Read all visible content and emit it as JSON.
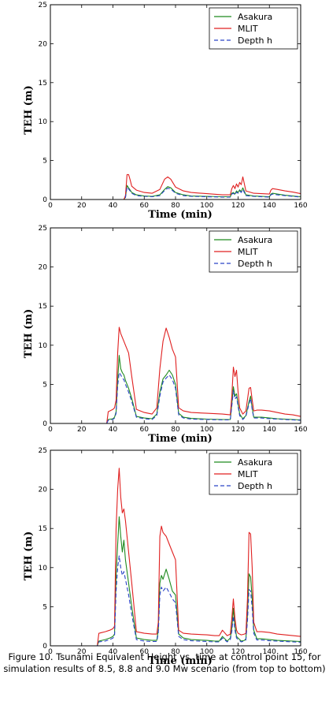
{
  "caption": "Figure 10. Tsunami Equivalent Height vs. time at control point 15, for simulation results of 8.5, 8.8 and 9.0 Mw scenario (from top to bottom)",
  "colors": {
    "Asakura": "#1f8a1f",
    "MLIT": "#e02020",
    "Depth h": "#2a44c8"
  },
  "chart_data": [
    {
      "type": "line",
      "xlabel": "Time (min)",
      "ylabel": "TEH (m)",
      "xlim": [
        0,
        160
      ],
      "ylim": [
        0,
        25
      ],
      "xticks": [
        0,
        20,
        40,
        60,
        80,
        100,
        120,
        140,
        160
      ],
      "yticks": [
        0,
        5,
        10,
        15,
        20,
        25
      ],
      "legend": "top-right",
      "series": [
        {
          "name": "Asakura",
          "style": "solid",
          "color": "#1f8a1f",
          "x": [
            0,
            47,
            48,
            49,
            50,
            52,
            55,
            60,
            65,
            70,
            73,
            75,
            77,
            80,
            85,
            90,
            100,
            110,
            115,
            116,
            117,
            118,
            119,
            120,
            121,
            122,
            123,
            125,
            130,
            140,
            141,
            142,
            145,
            150,
            155,
            160
          ],
          "y": [
            0,
            0,
            0.3,
            1.8,
            1.5,
            0.9,
            0.6,
            0.45,
            0.4,
            0.6,
            1.3,
            1.65,
            1.5,
            0.9,
            0.6,
            0.45,
            0.4,
            0.35,
            0.35,
            0.8,
            0.9,
            0.7,
            1.1,
            0.9,
            1.25,
            1.0,
            1.5,
            0.6,
            0.45,
            0.35,
            0.7,
            0.8,
            0.7,
            0.55,
            0.45,
            0.35
          ]
        },
        {
          "name": "MLIT",
          "style": "solid",
          "color": "#e02020",
          "x": [
            0,
            47,
            48,
            49,
            50,
            51,
            52,
            55,
            60,
            65,
            70,
            73,
            75,
            77,
            80,
            85,
            90,
            100,
            110,
            115,
            116,
            117,
            118,
            119,
            120,
            121,
            122,
            123,
            125,
            130,
            140,
            141,
            142,
            145,
            150,
            155,
            160
          ],
          "y": [
            0,
            0,
            0.5,
            3.2,
            3.2,
            2.5,
            1.7,
            1.2,
            0.9,
            0.8,
            1.3,
            2.6,
            2.9,
            2.6,
            1.6,
            1.1,
            0.9,
            0.75,
            0.6,
            0.6,
            1.4,
            1.8,
            1.4,
            2.0,
            1.6,
            2.2,
            1.9,
            2.9,
            1.1,
            0.8,
            0.7,
            1.2,
            1.4,
            1.3,
            1.1,
            0.95,
            0.75
          ]
        },
        {
          "name": "Depth h",
          "style": "dashed",
          "color": "#2a44c8",
          "x": [
            0,
            47,
            48,
            49,
            50,
            52,
            55,
            60,
            65,
            70,
            73,
            75,
            77,
            80,
            85,
            90,
            100,
            110,
            115,
            116,
            117,
            118,
            119,
            120,
            121,
            122,
            123,
            125,
            130,
            140,
            141,
            142,
            145,
            150,
            155,
            160
          ],
          "y": [
            0,
            0,
            0.25,
            1.6,
            1.35,
            0.8,
            0.5,
            0.4,
            0.35,
            0.5,
            1.15,
            1.45,
            1.35,
            0.8,
            0.5,
            0.4,
            0.35,
            0.3,
            0.3,
            0.7,
            0.8,
            0.6,
            0.95,
            0.8,
            1.1,
            0.9,
            1.3,
            0.5,
            0.4,
            0.3,
            0.6,
            0.7,
            0.6,
            0.5,
            0.4,
            0.3
          ]
        }
      ]
    },
    {
      "type": "line",
      "xlabel": "Time (min)",
      "ylabel": "TEH (m)",
      "xlim": [
        0,
        160
      ],
      "ylim": [
        0,
        25
      ],
      "xticks": [
        0,
        20,
        40,
        60,
        80,
        100,
        120,
        140,
        160
      ],
      "yticks": [
        0,
        5,
        10,
        15,
        20,
        25
      ],
      "legend": "top-right",
      "series": [
        {
          "name": "Asakura",
          "style": "solid",
          "color": "#1f8a1f",
          "x": [
            0,
            36,
            37,
            40,
            41,
            42,
            43,
            44,
            45,
            46,
            47,
            48,
            50,
            52,
            55,
            60,
            65,
            68,
            70,
            72,
            74,
            76,
            78,
            80,
            82,
            85,
            90,
            100,
            110,
            115,
            116,
            117,
            118,
            119,
            120,
            121,
            123,
            125,
            127,
            128,
            129,
            130,
            132,
            135,
            140,
            145,
            150,
            155,
            160
          ],
          "y": [
            0,
            0,
            0.5,
            0.6,
            0.8,
            1.5,
            5.5,
            8.7,
            7.0,
            6.5,
            6.2,
            5.5,
            4.5,
            3.2,
            0.9,
            0.7,
            0.6,
            1.2,
            4.0,
            5.7,
            6.2,
            6.8,
            6.2,
            5.0,
            1.3,
            0.8,
            0.65,
            0.55,
            0.5,
            0.5,
            2.5,
            4.7,
            3.5,
            3.8,
            2.5,
            1.2,
            0.6,
            1.0,
            2.8,
            3.5,
            2.0,
            0.8,
            0.8,
            0.8,
            0.7,
            0.6,
            0.55,
            0.5,
            0.45
          ]
        },
        {
          "name": "MLIT",
          "style": "solid",
          "color": "#e02020",
          "x": [
            0,
            36,
            37,
            40,
            41,
            42,
            43,
            44,
            45,
            46,
            47,
            48,
            50,
            52,
            55,
            60,
            65,
            68,
            70,
            72,
            74,
            76,
            78,
            80,
            82,
            85,
            90,
            100,
            110,
            115,
            116,
            117,
            118,
            119,
            120,
            121,
            123,
            125,
            127,
            128,
            129,
            130,
            132,
            135,
            140,
            145,
            150,
            155,
            160
          ],
          "y": [
            0,
            0,
            1.5,
            1.8,
            2.0,
            3.0,
            9.0,
            12.3,
            11.5,
            11.0,
            10.5,
            10.0,
            9.0,
            6.0,
            1.8,
            1.4,
            1.2,
            2.0,
            7.0,
            10.5,
            12.2,
            11.0,
            9.5,
            8.5,
            2.0,
            1.6,
            1.4,
            1.3,
            1.2,
            1.1,
            3.5,
            7.2,
            6.0,
            6.8,
            4.0,
            2.0,
            1.2,
            1.6,
            4.5,
            4.6,
            3.0,
            1.6,
            1.7,
            1.7,
            1.6,
            1.4,
            1.2,
            1.1,
            0.9
          ]
        },
        {
          "name": "Depth h",
          "style": "dashed",
          "color": "#2a44c8",
          "x": [
            0,
            36,
            37,
            40,
            41,
            42,
            43,
            44,
            45,
            46,
            47,
            48,
            50,
            52,
            55,
            60,
            65,
            68,
            70,
            72,
            74,
            76,
            78,
            80,
            82,
            85,
            90,
            100,
            110,
            115,
            116,
            117,
            118,
            119,
            120,
            121,
            123,
            125,
            127,
            128,
            129,
            130,
            132,
            135,
            140,
            145,
            150,
            155,
            160
          ],
          "y": [
            0,
            0,
            0.4,
            0.5,
            0.7,
            1.3,
            4.8,
            6.5,
            6.2,
            5.8,
            5.6,
            5.0,
            4.0,
            2.8,
            0.8,
            0.6,
            0.5,
            1.0,
            3.5,
            5.3,
            5.8,
            6.2,
            5.6,
            4.5,
            1.1,
            0.7,
            0.55,
            0.5,
            0.45,
            0.45,
            2.2,
            4.2,
            3.1,
            3.4,
            2.2,
            1.0,
            0.5,
            0.9,
            2.5,
            3.2,
            1.8,
            0.7,
            0.7,
            0.7,
            0.6,
            0.55,
            0.5,
            0.45,
            0.4
          ]
        }
      ]
    },
    {
      "type": "line",
      "xlabel": "Time (min)",
      "ylabel": "TEH (m)",
      "xlim": [
        0,
        160
      ],
      "ylim": [
        0,
        25
      ],
      "xticks": [
        0,
        20,
        40,
        60,
        80,
        100,
        120,
        140,
        160
      ],
      "yticks": [
        0,
        5,
        10,
        15,
        20,
        25
      ],
      "legend": "top-right",
      "series": [
        {
          "name": "Asakura",
          "style": "solid",
          "color": "#1f8a1f",
          "x": [
            0,
            30,
            31,
            35,
            38,
            40,
            41,
            42,
            43,
            44,
            45,
            46,
            47,
            48,
            50,
            52,
            55,
            60,
            65,
            68,
            69,
            70,
            71,
            72,
            74,
            76,
            78,
            80,
            82,
            85,
            90,
            100,
            105,
            108,
            110,
            113,
            115,
            116,
            117,
            118,
            119,
            120,
            122,
            124,
            125,
            126,
            127,
            128,
            129,
            130,
            132,
            135,
            140,
            145,
            150,
            155,
            160
          ],
          "y": [
            0,
            0,
            0.6,
            0.8,
            1.0,
            1.2,
            1.5,
            9.0,
            13.0,
            16.5,
            14.0,
            12.0,
            13.5,
            11.0,
            8.0,
            5.0,
            1.0,
            0.8,
            0.7,
            0.7,
            2.0,
            8.0,
            9.0,
            8.5,
            9.8,
            8.5,
            7.0,
            6.5,
            1.5,
            1.0,
            0.8,
            0.7,
            0.6,
            0.6,
            1.2,
            0.6,
            1.0,
            2.2,
            4.8,
            2.5,
            1.2,
            1.0,
            0.6,
            0.7,
            0.9,
            4.0,
            9.2,
            8.8,
            6.0,
            2.0,
            0.9,
            0.9,
            0.8,
            0.7,
            0.65,
            0.6,
            0.55
          ]
        },
        {
          "name": "MLIT",
          "style": "solid",
          "color": "#e02020",
          "x": [
            0,
            30,
            31,
            35,
            38,
            40,
            41,
            42,
            43,
            44,
            45,
            46,
            47,
            48,
            50,
            52,
            55,
            60,
            65,
            68,
            69,
            70,
            71,
            72,
            74,
            76,
            78,
            80,
            82,
            85,
            90,
            100,
            105,
            108,
            110,
            113,
            115,
            116,
            117,
            118,
            119,
            120,
            122,
            124,
            125,
            126,
            127,
            128,
            129,
            130,
            132,
            135,
            140,
            145,
            150,
            155,
            160
          ],
          "y": [
            0,
            0,
            1.6,
            1.8,
            2.0,
            2.2,
            2.5,
            15.0,
            20.0,
            22.7,
            19.0,
            17.0,
            17.5,
            16.0,
            12.0,
            8.0,
            1.8,
            1.6,
            1.5,
            1.5,
            3.0,
            14.0,
            15.3,
            14.5,
            14.0,
            13.0,
            12.0,
            11.0,
            2.0,
            1.6,
            1.5,
            1.4,
            1.3,
            1.3,
            2.0,
            1.3,
            1.5,
            3.5,
            6.0,
            3.5,
            2.0,
            1.6,
            1.4,
            1.5,
            1.6,
            6.0,
            14.5,
            14.3,
            10.0,
            3.0,
            1.8,
            1.8,
            1.7,
            1.5,
            1.4,
            1.3,
            1.2
          ]
        },
        {
          "name": "Depth h",
          "style": "dashed",
          "color": "#2a44c8",
          "x": [
            0,
            30,
            31,
            35,
            38,
            40,
            41,
            42,
            43,
            44,
            45,
            46,
            47,
            48,
            50,
            52,
            55,
            60,
            65,
            68,
            69,
            70,
            71,
            72,
            74,
            76,
            78,
            80,
            82,
            85,
            90,
            100,
            105,
            108,
            110,
            113,
            115,
            116,
            117,
            118,
            119,
            120,
            122,
            124,
            125,
            126,
            127,
            128,
            129,
            130,
            132,
            135,
            140,
            145,
            150,
            155,
            160
          ],
          "y": [
            0,
            0,
            0.5,
            0.6,
            0.8,
            1.0,
            1.2,
            7.0,
            10.0,
            11.5,
            10.0,
            9.0,
            9.5,
            8.5,
            6.5,
            4.0,
            0.8,
            0.6,
            0.55,
            0.55,
            1.6,
            6.5,
            7.5,
            7.0,
            7.5,
            6.8,
            6.0,
            5.5,
            1.2,
            0.8,
            0.65,
            0.55,
            0.5,
            0.5,
            1.0,
            0.5,
            0.8,
            1.8,
            3.8,
            2.0,
            1.0,
            0.8,
            0.5,
            0.6,
            0.75,
            3.2,
            7.2,
            7.0,
            4.8,
            1.6,
            0.75,
            0.75,
            0.65,
            0.6,
            0.55,
            0.5,
            0.45
          ]
        }
      ]
    }
  ]
}
